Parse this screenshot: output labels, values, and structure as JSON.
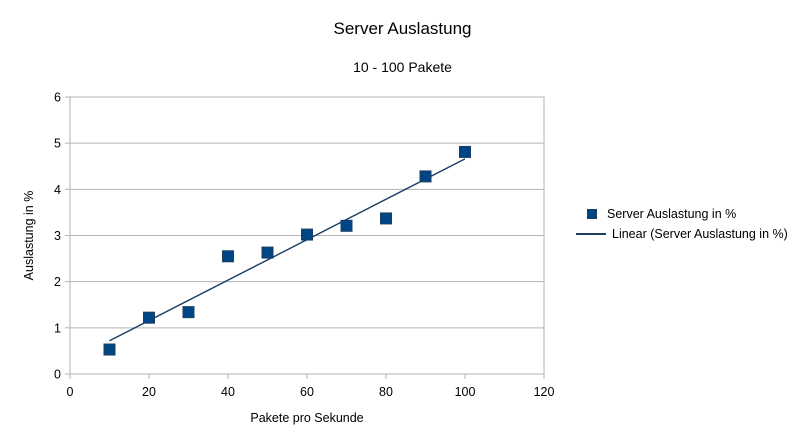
{
  "chart_data": {
    "type": "scatter",
    "title": "Server Auslastung",
    "subtitle": "10 - 100 Pakete",
    "xlabel": "Pakete pro Sekunde",
    "ylabel": "Auslastung in %",
    "xlim": [
      0,
      120
    ],
    "ylim": [
      0,
      6
    ],
    "xticks": [
      0,
      20,
      40,
      60,
      80,
      100,
      120
    ],
    "yticks": [
      0,
      1,
      2,
      3,
      4,
      5,
      6
    ],
    "grid": "horizontal",
    "legend_position": "right",
    "series": [
      {
        "name": "Server Auslastung in %",
        "color": "#004586",
        "marker": "square",
        "x": [
          10,
          20,
          30,
          40,
          50,
          60,
          70,
          80,
          90,
          100
        ],
        "y": [
          0.53,
          1.22,
          1.34,
          2.55,
          2.63,
          3.02,
          3.21,
          3.37,
          4.28,
          4.81
        ]
      }
    ],
    "trendline": {
      "name": "Linear (Server Auslastung in %)",
      "type": "linear",
      "color": "#1b3f63",
      "x": [
        10,
        100
      ],
      "y": [
        0.72,
        4.66
      ]
    }
  }
}
